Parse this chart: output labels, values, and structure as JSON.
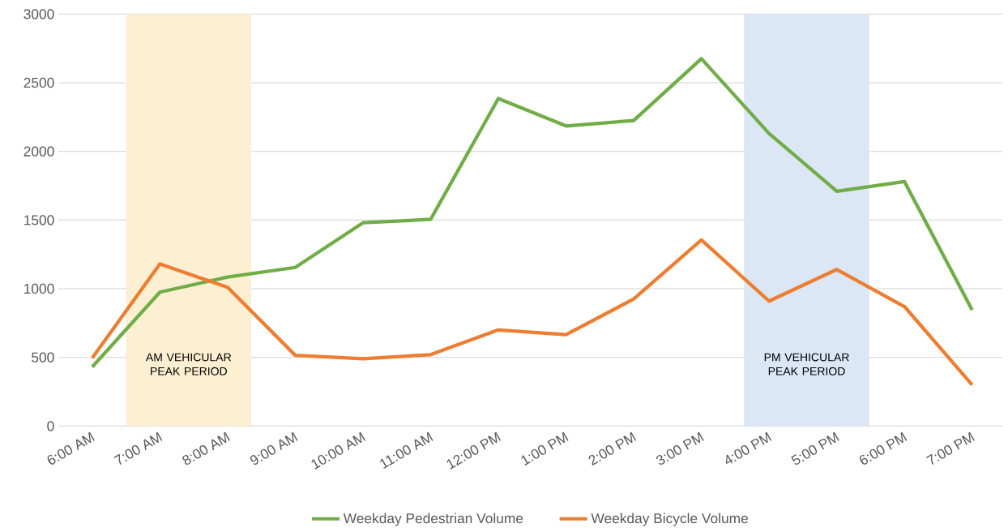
{
  "chart_data": {
    "type": "line",
    "x": [
      6,
      7,
      8,
      9,
      10,
      11,
      12,
      13,
      14,
      15,
      16,
      17,
      18,
      19
    ],
    "xlim": [
      5.5,
      19.45
    ],
    "xticks": [
      {
        "value": 6,
        "label": "6:00 AM"
      },
      {
        "value": 7,
        "label": "7:00 AM"
      },
      {
        "value": 8,
        "label": "8:00 AM"
      },
      {
        "value": 9,
        "label": "9:00 AM"
      },
      {
        "value": 10,
        "label": "10:00 AM"
      },
      {
        "value": 11,
        "label": "11:00 AM"
      },
      {
        "value": 12,
        "label": "12:00 PM"
      },
      {
        "value": 13,
        "label": "1:00 PM"
      },
      {
        "value": 14,
        "label": "2:00 PM"
      },
      {
        "value": 15,
        "label": "3:00 PM"
      },
      {
        "value": 16,
        "label": "4:00 PM"
      },
      {
        "value": 17,
        "label": "5:00 PM"
      },
      {
        "value": 18,
        "label": "6:00 PM"
      },
      {
        "value": 19,
        "label": "7:00 PM"
      }
    ],
    "ylim": [
      0,
      3000
    ],
    "yticks": [
      0,
      500,
      1000,
      1500,
      2000,
      2500,
      3000
    ],
    "series": [
      {
        "name": "Weekday Pedestrian Volume",
        "color": "#70ad47",
        "values": [
          430,
          975,
          1085,
          1155,
          1480,
          1505,
          2385,
          2185,
          2225,
          2675,
          2130,
          1710,
          1780,
          845
        ]
      },
      {
        "name": "Weekday Bicycle Volume",
        "color": "#ed7d31",
        "values": [
          495,
          1180,
          1010,
          515,
          490,
          520,
          700,
          665,
          925,
          1355,
          910,
          1140,
          870,
          300
        ]
      }
    ],
    "bands": [
      {
        "axis": "x",
        "from": 6.5,
        "to": 8.35,
        "label": "AM VEHICULAR PEAK PERIOD",
        "color": "#fdf0d2"
      },
      {
        "axis": "x",
        "from": 15.63,
        "to": 17.48,
        "label": "PM VEHICULAR PEAK PERIOD",
        "color": "#dbe7f5"
      }
    ],
    "grid": "y",
    "legend": "bottom",
    "marker": "none",
    "line_style": "solid"
  }
}
